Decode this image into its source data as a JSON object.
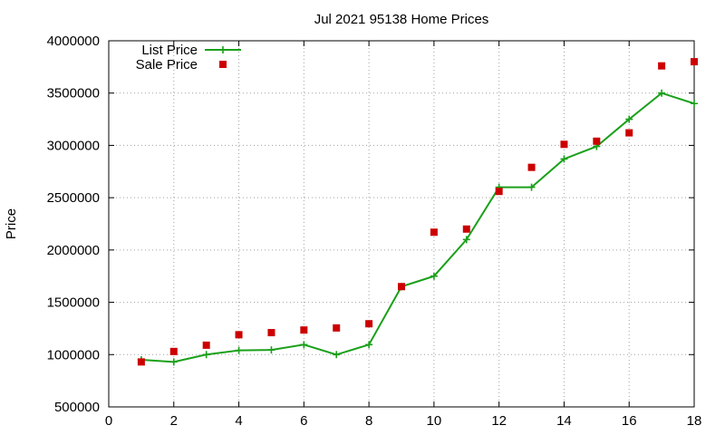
{
  "chart_data": {
    "type": "line",
    "title": "Jul 2021 95138 Home Prices",
    "xlabel": "",
    "ylabel": "Price",
    "xlim": [
      0,
      18
    ],
    "ylim": [
      500000,
      4000000
    ],
    "x_ticks": [
      0,
      2,
      4,
      6,
      8,
      10,
      12,
      14,
      16,
      18
    ],
    "y_ticks": [
      500000,
      1000000,
      1500000,
      2000000,
      2500000,
      3000000,
      3500000,
      4000000
    ],
    "grid": true,
    "legend_position": "top-left",
    "series": [
      {
        "name": "List Price",
        "style": "line-with-plus-markers",
        "color": "#1aa01a",
        "x": [
          1,
          2,
          3,
          4,
          5,
          6,
          7,
          8,
          9,
          10,
          11,
          12,
          13,
          14,
          15,
          16,
          17,
          18
        ],
        "values": [
          950000,
          930000,
          1000000,
          1040000,
          1045000,
          1095000,
          1000000,
          1095000,
          1650000,
          1750000,
          2100000,
          2600000,
          2600000,
          2870000,
          2990000,
          3250000,
          3500000,
          3400000
        ]
      },
      {
        "name": "Sale Price",
        "style": "square-markers",
        "color": "#cc0000",
        "x": [
          1,
          2,
          3,
          4,
          5,
          6,
          7,
          8,
          9,
          10,
          11,
          12,
          13,
          14,
          15,
          16,
          17,
          18
        ],
        "values": [
          930000,
          1030000,
          1090000,
          1190000,
          1210000,
          1235000,
          1255000,
          1295000,
          1650000,
          2170000,
          2200000,
          2560000,
          2790000,
          3010000,
          3040000,
          3120000,
          3760000,
          3800000
        ]
      }
    ]
  }
}
